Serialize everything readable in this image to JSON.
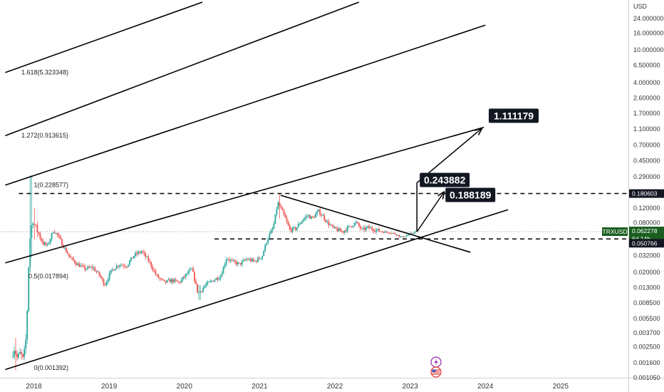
{
  "chart_data": {
    "type": "candlestick",
    "symbol": "TRXUSD",
    "currency": "USD",
    "scale": "log",
    "ylim": [
      0.00105,
      38.0
    ],
    "xlim": [
      2017.55,
      2025.9
    ],
    "y_ticks": [
      {
        "value": 24.0,
        "label": "24.000000"
      },
      {
        "value": 16.0,
        "label": "16.000000"
      },
      {
        "value": 10.0,
        "label": "10.000000"
      },
      {
        "value": 6.5,
        "label": "6.500000"
      },
      {
        "value": 4.0,
        "label": "4.000000"
      },
      {
        "value": 2.6,
        "label": "2.600000"
      },
      {
        "value": 1.7,
        "label": "1.700000"
      },
      {
        "value": 1.1,
        "label": "1.100000"
      },
      {
        "value": 0.7,
        "label": "0.700000"
      },
      {
        "value": 0.45,
        "label": "0.450000"
      },
      {
        "value": 0.29,
        "label": "0.290000"
      },
      {
        "value": 0.12,
        "label": "0.120000"
      },
      {
        "value": 0.08,
        "label": "0.080000"
      },
      {
        "value": 0.032,
        "label": "0.032000"
      },
      {
        "value": 0.02,
        "label": "0.020000"
      },
      {
        "value": 0.013,
        "label": "0.013000"
      },
      {
        "value": 0.0085,
        "label": "0.008500"
      },
      {
        "value": 0.0055,
        "label": "0.005500"
      },
      {
        "value": 0.0037,
        "label": "0.003700"
      },
      {
        "value": 0.0025,
        "label": "0.002500"
      },
      {
        "value": 0.0016,
        "label": "0.001600"
      },
      {
        "value": 0.00105,
        "label": "0.001050"
      }
    ],
    "x_ticks": [
      {
        "value": 2018.0,
        "label": "2018"
      },
      {
        "value": 2019.0,
        "label": "2019"
      },
      {
        "value": 2020.0,
        "label": "2020"
      },
      {
        "value": 2021.0,
        "label": "2021"
      },
      {
        "value": 2022.0,
        "label": "2022"
      },
      {
        "value": 2023.0,
        "label": "2023"
      },
      {
        "value": 2024.0,
        "label": "2024"
      },
      {
        "value": 2025.0,
        "label": "2025"
      }
    ],
    "price_anchors": [
      [
        2017.72,
        0.0019
      ],
      [
        2017.76,
        0.0024
      ],
      [
        2017.8,
        0.0018
      ],
      [
        2017.84,
        0.0021
      ],
      [
        2017.88,
        0.0017
      ],
      [
        2017.92,
        0.0035
      ],
      [
        2017.96,
        0.045
      ],
      [
        2018.0,
        0.09
      ],
      [
        2018.04,
        0.07
      ],
      [
        2018.08,
        0.06
      ],
      [
        2018.14,
        0.045
      ],
      [
        2018.2,
        0.042
      ],
      [
        2018.28,
        0.065
      ],
      [
        2018.34,
        0.055
      ],
      [
        2018.42,
        0.04
      ],
      [
        2018.5,
        0.03
      ],
      [
        2018.6,
        0.025
      ],
      [
        2018.7,
        0.022
      ],
      [
        2018.8,
        0.023
      ],
      [
        2018.9,
        0.018
      ],
      [
        2018.96,
        0.014
      ],
      [
        2019.05,
        0.021
      ],
      [
        2019.15,
        0.025
      ],
      [
        2019.25,
        0.024
      ],
      [
        2019.35,
        0.032
      ],
      [
        2019.45,
        0.036
      ],
      [
        2019.55,
        0.027
      ],
      [
        2019.65,
        0.018
      ],
      [
        2019.75,
        0.015
      ],
      [
        2019.85,
        0.016
      ],
      [
        2019.95,
        0.015
      ],
      [
        2020.05,
        0.019
      ],
      [
        2020.12,
        0.022
      ],
      [
        2020.2,
        0.011
      ],
      [
        2020.3,
        0.014
      ],
      [
        2020.4,
        0.016
      ],
      [
        2020.5,
        0.018
      ],
      [
        2020.58,
        0.03
      ],
      [
        2020.65,
        0.027
      ],
      [
        2020.75,
        0.025
      ],
      [
        2020.85,
        0.029
      ],
      [
        2020.95,
        0.027
      ],
      [
        2021.05,
        0.031
      ],
      [
        2021.12,
        0.05
      ],
      [
        2021.2,
        0.07
      ],
      [
        2021.26,
        0.14
      ],
      [
        2021.3,
        0.12
      ],
      [
        2021.36,
        0.09
      ],
      [
        2021.42,
        0.065
      ],
      [
        2021.5,
        0.068
      ],
      [
        2021.58,
        0.085
      ],
      [
        2021.66,
        0.098
      ],
      [
        2021.72,
        0.09
      ],
      [
        2021.8,
        0.11
      ],
      [
        2021.86,
        0.096
      ],
      [
        2021.92,
        0.08
      ],
      [
        2022.0,
        0.068
      ],
      [
        2022.06,
        0.065
      ],
      [
        2022.12,
        0.062
      ],
      [
        2022.2,
        0.07
      ],
      [
        2022.3,
        0.08
      ],
      [
        2022.38,
        0.065
      ],
      [
        2022.46,
        0.07
      ],
      [
        2022.55,
        0.066
      ],
      [
        2022.65,
        0.062
      ],
      [
        2022.75,
        0.061
      ],
      [
        2022.85,
        0.057
      ],
      [
        2022.9,
        0.053
      ],
      [
        2022.95,
        0.055
      ],
      [
        2023.02,
        0.058
      ],
      [
        2023.06,
        0.061
      ],
      [
        2023.09,
        0.0623
      ]
    ],
    "spikes": [
      {
        "x": 2017.96,
        "high": 0.3,
        "low": 0.03
      },
      {
        "x": 2018.0,
        "high": 0.12,
        "low": 0.05
      },
      {
        "x": 2017.76,
        "high": 0.0032,
        "low": 0.0013
      },
      {
        "x": 2020.2,
        "high": 0.014,
        "low": 0.0092
      },
      {
        "x": 2021.26,
        "high": 0.18,
        "low": 0.09
      }
    ],
    "trendlines": [
      {
        "name": "channel-upper",
        "points": [
          [
            2017.62,
            0.026
          ],
          [
            2023.98,
            1.15
          ]
        ]
      },
      {
        "name": "channel-lower",
        "points": [
          [
            2017.62,
            0.00132
          ],
          [
            2024.3,
            0.115
          ]
        ]
      },
      {
        "name": "triangle-top",
        "points": [
          [
            2021.28,
            0.172
          ],
          [
            2023.8,
            0.035
          ]
        ]
      },
      {
        "name": "fib-1.618",
        "points": [
          [
            2017.62,
            5.32
          ],
          [
            2020.24,
            38.0
          ]
        ]
      },
      {
        "name": "fib-1.272",
        "points": [
          [
            2017.62,
            0.91
          ],
          [
            2022.32,
            38.0
          ]
        ]
      },
      {
        "name": "fib-1",
        "points": [
          [
            2017.62,
            0.2286
          ],
          [
            2024.0,
            20.0
          ]
        ]
      }
    ],
    "horizontal_lines": [
      {
        "name": "resistance",
        "value": 0.180603,
        "x_start": 2017.8,
        "x_end": 2025.9
      },
      {
        "name": "support",
        "value": 0.050766,
        "x_start": 2020.4,
        "x_end": 2025.9
      }
    ],
    "current_price_line": 0.062278,
    "projection_paths": [
      {
        "name": "proj-near",
        "points": [
          [
            2023.09,
            0.062
          ],
          [
            2023.45,
            0.188189
          ]
        ]
      },
      {
        "name": "proj-far",
        "points": [
          [
            2023.09,
            0.062
          ],
          [
            2023.09,
            0.243882
          ],
          [
            2023.95,
            1.111179
          ]
        ]
      }
    ],
    "callouts": [
      {
        "name": "target-1-callout",
        "label": "1.111179",
        "x": 2023.95,
        "value": 1.111179
      },
      {
        "name": "target-2-callout",
        "label": "0.243882",
        "x": 2023.09,
        "value": 0.243882
      },
      {
        "name": "target-3-callout",
        "label": "0.188189",
        "x": 2023.45,
        "value": 0.188189
      }
    ],
    "fib_labels": [
      {
        "label": "1.618(5.323348)",
        "value": 5.323348
      },
      {
        "label": "1.272(0.913615)",
        "value": 0.913615
      },
      {
        "label": "1(0.228577)",
        "value": 0.228577
      },
      {
        "label": "0.5(0.017894)",
        "value": 0.017894
      },
      {
        "label": "0(0.001392)",
        "value": 0.001392
      }
    ],
    "price_tags": [
      {
        "name": "tag-resistance",
        "label": "0.180603",
        "value": 0.180603,
        "style": "dark"
      },
      {
        "name": "tag-symbol",
        "label": "TRXUSD",
        "value": 0.062278,
        "style": "green-symbol"
      },
      {
        "name": "tag-current",
        "label": "0.062278",
        "sublabel": "6d 14h",
        "value": 0.062278,
        "style": "green"
      },
      {
        "name": "tag-support",
        "label": "0.050766",
        "value": 0.050766,
        "style": "dark"
      }
    ],
    "colors": {
      "up": "#26a69a",
      "down": "#ef5350",
      "line": "#000000",
      "grid_dots": "#9e9e9e",
      "tag_dark": "#131722",
      "tag_green": "#1b5e20"
    }
  }
}
